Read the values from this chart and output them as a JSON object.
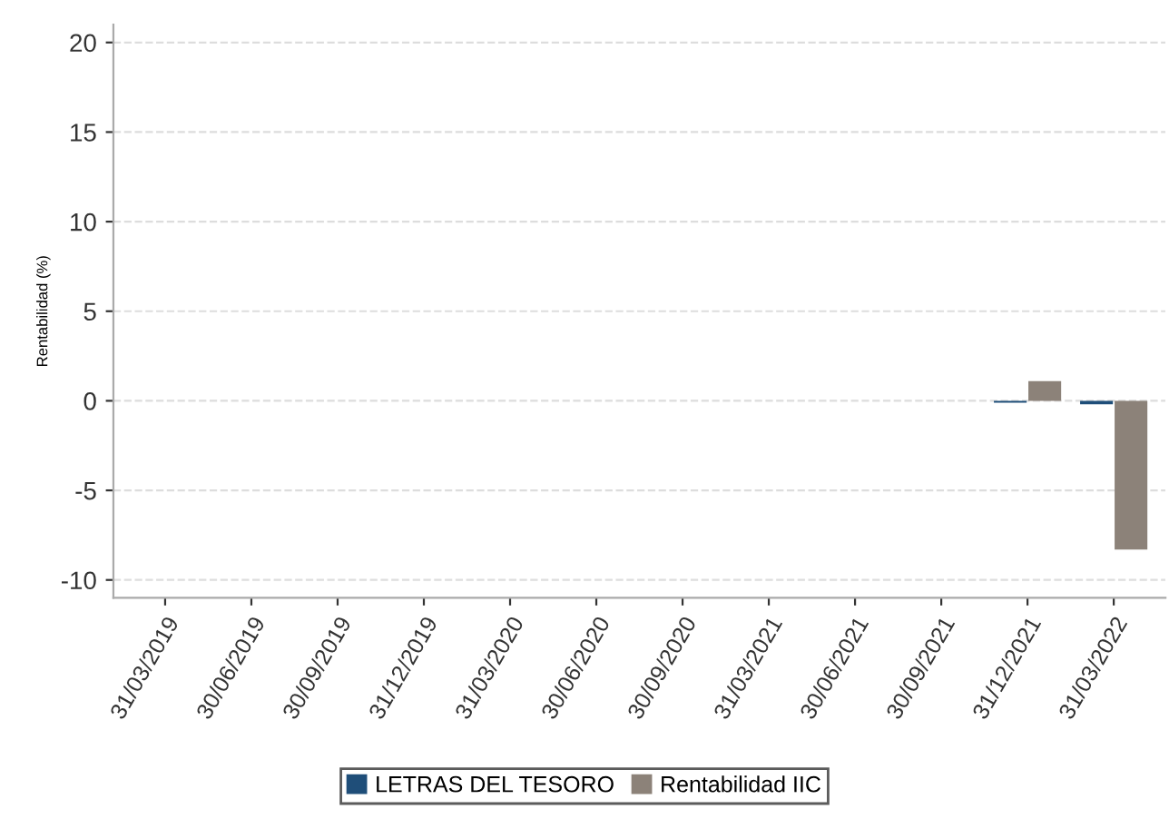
{
  "chart_data": {
    "type": "bar",
    "ylabel": "Rentabilidad (%)",
    "categories": [
      "31/03/2019",
      "30/06/2019",
      "30/09/2019",
      "31/12/2019",
      "31/03/2020",
      "30/06/2020",
      "30/09/2020",
      "31/03/2021",
      "30/06/2021",
      "30/09/2021",
      "31/12/2021",
      "31/03/2022"
    ],
    "series": [
      {
        "name": "LETRAS DEL TESORO",
        "color": "#1f4e79",
        "values": [
          null,
          null,
          null,
          null,
          null,
          null,
          null,
          null,
          null,
          null,
          -0.1,
          -0.2
        ]
      },
      {
        "name": "Rentabilidad IIC",
        "color": "#8c8279",
        "values": [
          null,
          null,
          null,
          null,
          null,
          null,
          null,
          null,
          null,
          null,
          1.1,
          -8.3
        ]
      }
    ],
    "ylim": [
      -11,
      21
    ],
    "yticks": [
      -10,
      -5,
      0,
      5,
      10,
      15,
      20
    ],
    "grid": "y",
    "legend": "bottom"
  }
}
